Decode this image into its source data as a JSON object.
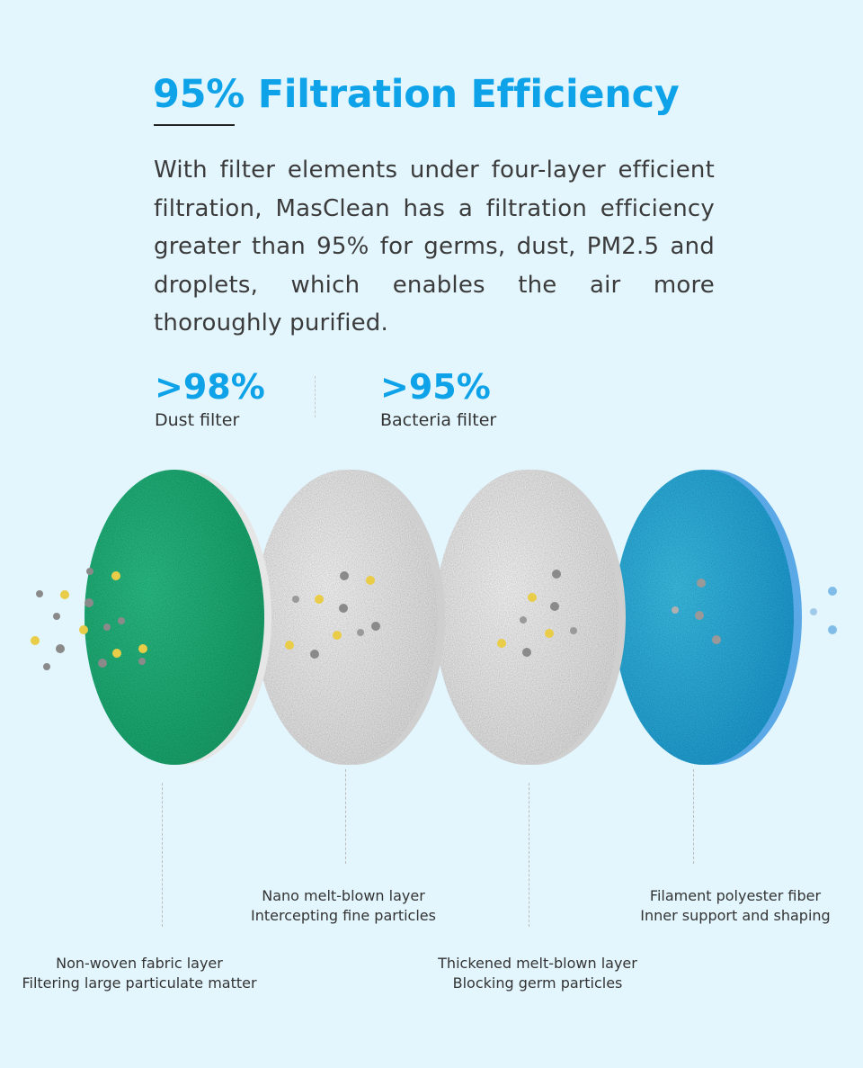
{
  "heading": {
    "title": "95% Filtration Efficiency",
    "description": "With filter elements under four-layer efficient filtration, MasClean has a filtration efficiency greater than 95% for germs, dust, PM2.5 and droplets, which enables the air more thoroughly purified."
  },
  "stats": [
    {
      "value": ">98%",
      "label": "Dust filter"
    },
    {
      "value": ">95%",
      "label": "Bacteria filter"
    }
  ],
  "layers": [
    {
      "name": "Non-woven fabric layer",
      "function": "Filtering large particulate matter",
      "color": "#22b57c"
    },
    {
      "name": "Nano melt-blown layer",
      "function": "Intercepting fine particles",
      "color": "#f3f3f3"
    },
    {
      "name": "Thickened melt-blown layer",
      "function": "Blocking germ particles",
      "color": "#f0f0f0"
    },
    {
      "name": "Filament polyester fiber",
      "function": "Inner support and shaping",
      "color": "#2cb6e4"
    }
  ],
  "colors": {
    "accent": "#0ea2e8",
    "background": "#e3f6fe",
    "particle_gray": "#8a8a8a",
    "particle_yellow": "#e9cc48",
    "particle_blue": "#7fbde8"
  }
}
